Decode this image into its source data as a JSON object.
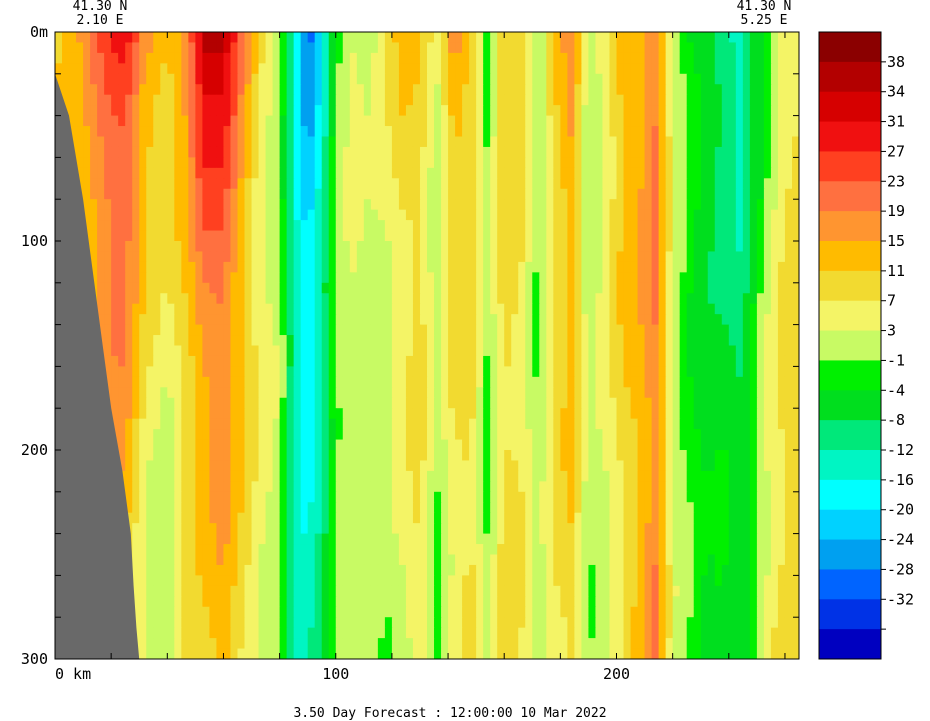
{
  "chart_data": {
    "type": "heatmap",
    "title": "3.50 Day Forecast : 12:00:00  10 Mar 2022",
    "left_location": {
      "lat": "41.30 N",
      "lon": "2.10 E"
    },
    "right_location": {
      "lat": "41.30 N",
      "lon": "5.25 E"
    },
    "x_axis": {
      "range": [
        0,
        265
      ],
      "ticks": [
        {
          "value": 0,
          "label": "0 km"
        },
        {
          "value": 100,
          "label": "100"
        },
        {
          "value": 200,
          "label": "200"
        }
      ]
    },
    "y_axis": {
      "range": [
        0,
        300
      ],
      "ticks": [
        {
          "value": 0,
          "label": "0m"
        },
        {
          "value": 100,
          "label": "100"
        },
        {
          "value": 200,
          "label": "200"
        },
        {
          "value": 300,
          "label": "300"
        }
      ]
    },
    "colorbar": {
      "bins": [
        {
          "color": "#8b0000",
          "label": ""
        },
        {
          "color": "#b30000",
          "label": "38"
        },
        {
          "color": "#d60000",
          "label": "34"
        },
        {
          "color": "#f01010",
          "label": "31"
        },
        {
          "color": "#ff4020",
          "label": "27"
        },
        {
          "color": "#ff7040",
          "label": "23"
        },
        {
          "color": "#ff9530",
          "label": "19"
        },
        {
          "color": "#ffbb00",
          "label": "15"
        },
        {
          "color": "#f2da30",
          "label": "11"
        },
        {
          "color": "#f4f466",
          "label": "7"
        },
        {
          "color": "#c8fa64",
          "label": "3"
        },
        {
          "color": "#00f000",
          "label": "-1"
        },
        {
          "color": "#00de1e",
          "label": "-4"
        },
        {
          "color": "#00e87a",
          "label": "-8"
        },
        {
          "color": "#00f5c3",
          "label": "-12"
        },
        {
          "color": "#00ffff",
          "label": "-16"
        },
        {
          "color": "#00d2ff",
          "label": "-20"
        },
        {
          "color": "#00a0f0",
          "label": "-24"
        },
        {
          "color": "#0064ff",
          "label": "-28"
        },
        {
          "color": "#0032e6",
          "label": "-32"
        },
        {
          "color": "#0000c0",
          "label": ""
        }
      ]
    },
    "field_columns": [
      {
        "x": 3,
        "surface": 10,
        "deep": 9
      },
      {
        "x": 10,
        "surface": 14,
        "deep": 8
      },
      {
        "x": 18,
        "surface": 24,
        "deep": 13
      },
      {
        "x": 25,
        "surface": 30,
        "deep": 12
      },
      {
        "x": 32,
        "surface": 18,
        "deep": 3
      },
      {
        "x": 40,
        "surface": 14,
        "deep": 1
      },
      {
        "x": 47,
        "surface": 20,
        "deep": 8
      },
      {
        "x": 53,
        "surface": 40,
        "deep": 9
      },
      {
        "x": 60,
        "surface": 38,
        "deep": 13
      },
      {
        "x": 67,
        "surface": 22,
        "deep": 7
      },
      {
        "x": 74,
        "surface": 8,
        "deep": 2
      },
      {
        "x": 80,
        "surface": 2,
        "deep": 0
      },
      {
        "x": 85,
        "surface": -14,
        "deep": -14
      },
      {
        "x": 90,
        "surface": -32,
        "deep": -15
      },
      {
        "x": 95,
        "surface": -20,
        "deep": -10
      },
      {
        "x": 100,
        "surface": -2,
        "deep": -1
      },
      {
        "x": 106,
        "surface": 3,
        "deep": 0
      },
      {
        "x": 112,
        "surface": -1,
        "deep": 2
      },
      {
        "x": 118,
        "surface": 6,
        "deep": 0
      },
      {
        "x": 124,
        "surface": 12,
        "deep": 4
      },
      {
        "x": 130,
        "surface": 10,
        "deep": 9
      },
      {
        "x": 136,
        "surface": 4,
        "deep": 0
      },
      {
        "x": 142,
        "surface": 20,
        "deep": 5
      },
      {
        "x": 148,
        "surface": 14,
        "deep": 9
      },
      {
        "x": 154,
        "surface": 1,
        "deep": -1
      },
      {
        "x": 160,
        "surface": 14,
        "deep": 7
      },
      {
        "x": 166,
        "surface": 11,
        "deep": 5
      },
      {
        "x": 172,
        "surface": -1,
        "deep": -2
      },
      {
        "x": 178,
        "surface": 10,
        "deep": 5
      },
      {
        "x": 184,
        "surface": 18,
        "deep": 8
      },
      {
        "x": 190,
        "surface": -2,
        "deep": -1
      },
      {
        "x": 196,
        "surface": 4,
        "deep": 2
      },
      {
        "x": 202,
        "surface": 14,
        "deep": 7
      },
      {
        "x": 208,
        "surface": 13,
        "deep": 13
      },
      {
        "x": 214,
        "surface": 18,
        "deep": 20
      },
      {
        "x": 220,
        "surface": 2,
        "deep": 4
      },
      {
        "x": 226,
        "surface": -4,
        "deep": 0
      },
      {
        "x": 232,
        "surface": -6,
        "deep": -4
      },
      {
        "x": 238,
        "surface": -12,
        "deep": -2
      },
      {
        "x": 244,
        "surface": -14,
        "deep": -6
      },
      {
        "x": 250,
        "surface": -6,
        "deep": 0
      },
      {
        "x": 256,
        "surface": 2,
        "deep": 6
      },
      {
        "x": 262,
        "surface": 8,
        "deep": 8
      }
    ],
    "land_boundary": [
      {
        "x": 0,
        "depth": 20
      },
      {
        "x": 5,
        "depth": 40
      },
      {
        "x": 10,
        "depth": 80
      },
      {
        "x": 14,
        "depth": 120
      },
      {
        "x": 17,
        "depth": 150
      },
      {
        "x": 20,
        "depth": 180
      },
      {
        "x": 24,
        "depth": 210
      },
      {
        "x": 27,
        "depth": 240
      },
      {
        "x": 28,
        "depth": 265
      },
      {
        "x": 29,
        "depth": 285
      },
      {
        "x": 30,
        "depth": 300
      }
    ],
    "land_color": "#696969"
  }
}
